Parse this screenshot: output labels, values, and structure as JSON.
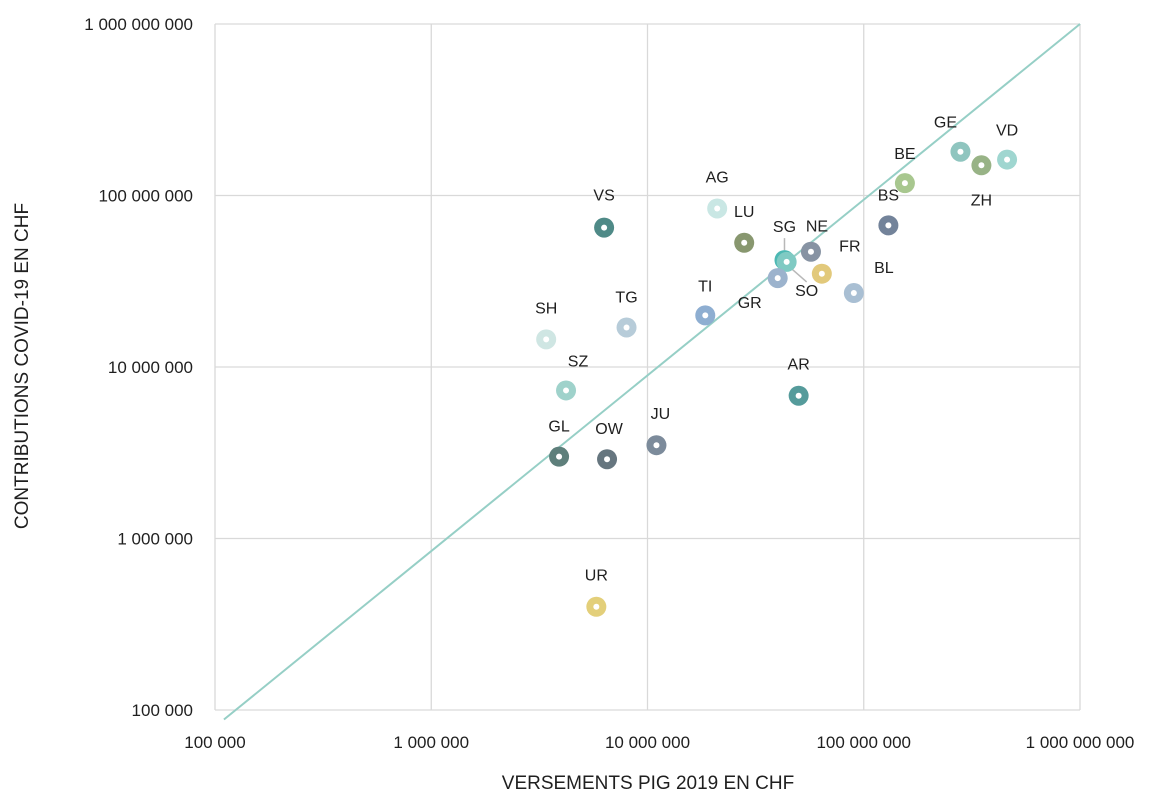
{
  "chart_data": {
    "type": "scatter",
    "xlabel": "VERSEMENTS PIG 2019 EN CHF",
    "ylabel": "CONTRIBUTIONS COVID-19 EN CHF",
    "xscale": "log",
    "yscale": "log",
    "xlim": [
      100000,
      1000000000
    ],
    "ylim": [
      100000,
      1000000000
    ],
    "xticks": [
      100000,
      1000000,
      10000000,
      100000000,
      1000000000
    ],
    "xtick_labels": [
      "100 000",
      "1 000 000",
      "10 000 000",
      "100 000 000",
      "1 000 000 000"
    ],
    "yticks": [
      100000,
      1000000,
      10000000,
      100000000,
      1000000000
    ],
    "ytick_labels": [
      "100 000",
      "1 000 000",
      "10 000 000",
      "100 000 000",
      "1 000 000 000"
    ],
    "grid": true,
    "legend": "none",
    "reference_line": {
      "x": [
        110000,
        1000000000
      ],
      "y": [
        88000,
        1000000000
      ],
      "color": "#96cfc6"
    },
    "points": [
      {
        "label": "GE",
        "x": 280000000,
        "y": 180000000,
        "color": "#8fc5bf"
      },
      {
        "label": "VD",
        "x": 460000000,
        "y": 162000000,
        "color": "#9fd6d0"
      },
      {
        "label": "ZH",
        "x": 350000000,
        "y": 150000000,
        "color": "#98b386"
      },
      {
        "label": "BE",
        "x": 155000000,
        "y": 118000000,
        "color": "#a8c78f"
      },
      {
        "label": "BS",
        "x": 130000000,
        "y": 67000000,
        "color": "#73839a"
      },
      {
        "label": "BL",
        "x": 90000000,
        "y": 27000000,
        "color": "#a9bfd3"
      },
      {
        "label": "FR",
        "x": 64000000,
        "y": 35000000,
        "color": "#e2c97b"
      },
      {
        "label": "NE",
        "x": 57000000,
        "y": 47000000,
        "color": "#8793a3"
      },
      {
        "label": "SG",
        "x": 43000000,
        "y": 42000000,
        "color": "#4cb8b3"
      },
      {
        "label": "SO",
        "x": 44000000,
        "y": 41000000,
        "color": "#7fcac3"
      },
      {
        "label": "GR",
        "x": 40000000,
        "y": 33000000,
        "color": "#9cb3cd"
      },
      {
        "label": "LU",
        "x": 28000000,
        "y": 53000000,
        "color": "#88976f"
      },
      {
        "label": "AG",
        "x": 21000000,
        "y": 84000000,
        "color": "#c9e7e4"
      },
      {
        "label": "TI",
        "x": 18500000,
        "y": 20000000,
        "color": "#8eaed1"
      },
      {
        "label": "AR",
        "x": 50000000,
        "y": 6800000,
        "color": "#559b9b"
      },
      {
        "label": "VS",
        "x": 6300000,
        "y": 65000000,
        "color": "#4f8a87"
      },
      {
        "label": "TG",
        "x": 8000000,
        "y": 17000000,
        "color": "#b7ccd9"
      },
      {
        "label": "SH",
        "x": 3400000,
        "y": 14500000,
        "color": "#cfe6e3"
      },
      {
        "label": "SZ",
        "x": 4200000,
        "y": 7300000,
        "color": "#9fd2cb"
      },
      {
        "label": "JU",
        "x": 11000000,
        "y": 3500000,
        "color": "#7c8b9b"
      },
      {
        "label": "GL",
        "x": 3900000,
        "y": 3000000,
        "color": "#5e7f7b"
      },
      {
        "label": "OW",
        "x": 6500000,
        "y": 2900000,
        "color": "#66767f"
      },
      {
        "label": "UR",
        "x": 5800000,
        "y": 400000,
        "color": "#e3cf7a"
      }
    ]
  }
}
